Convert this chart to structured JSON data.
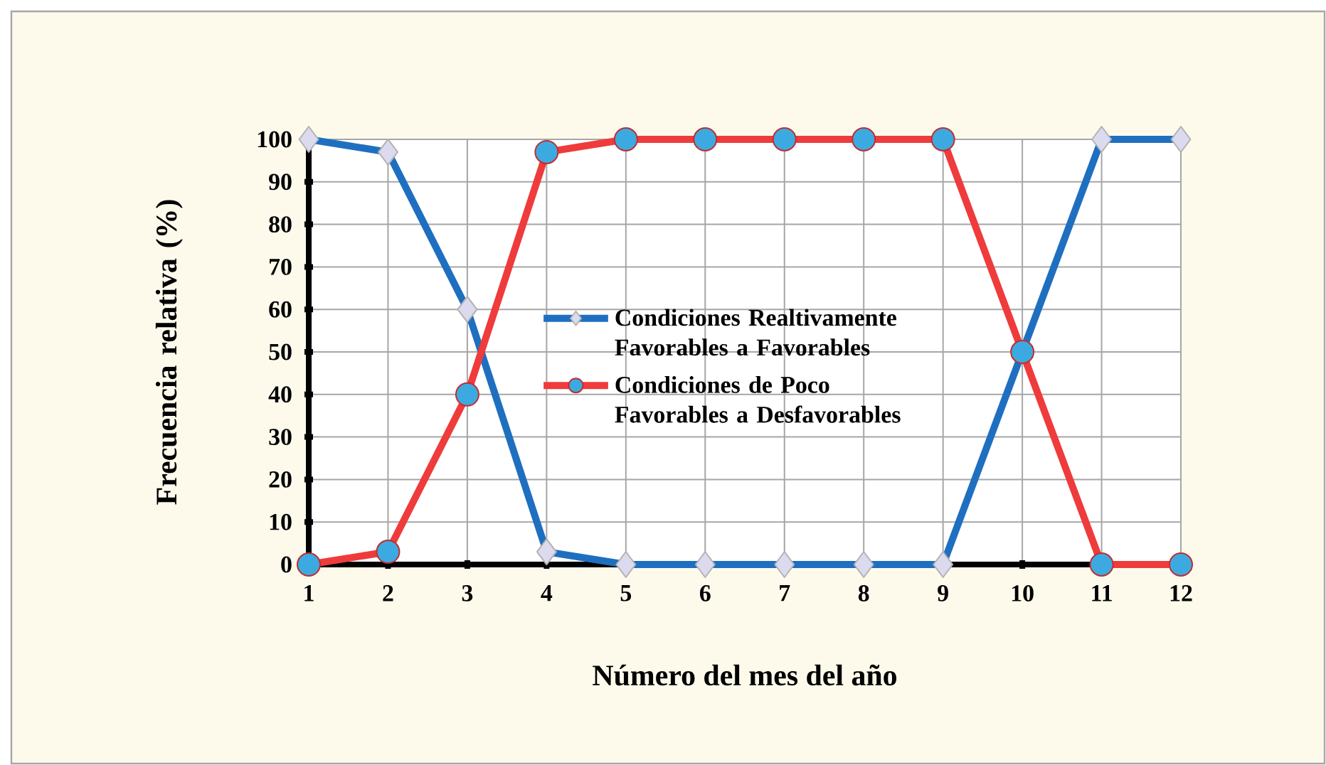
{
  "chart_data": {
    "type": "line",
    "xlabel": "Número del mes del año",
    "ylabel": "Frecuencia relativa (%)",
    "x": [
      1,
      2,
      3,
      4,
      5,
      6,
      7,
      8,
      9,
      10,
      11,
      12
    ],
    "series": [
      {
        "name": "Condiciones Realtivamente Favorables a Favorables",
        "color": "#1f6fc0",
        "marker": "diamond",
        "values": [
          100,
          97,
          60,
          3,
          0,
          0,
          0,
          0,
          0,
          50,
          100,
          100
        ]
      },
      {
        "name": "Condiciones de Poco Favorables a Desfavorables",
        "color": "#ef3b3b",
        "marker": "circle",
        "values": [
          0,
          3,
          40,
          97,
          100,
          100,
          100,
          100,
          100,
          50,
          0,
          0
        ]
      }
    ],
    "xlim": [
      1,
      12
    ],
    "xticks": [
      1,
      2,
      3,
      4,
      5,
      6,
      7,
      8,
      9,
      10,
      11,
      12
    ],
    "ylim": [
      0,
      100
    ],
    "yticks": [
      0,
      10,
      20,
      30,
      40,
      50,
      60,
      70,
      80,
      90,
      100
    ],
    "grid": true,
    "legend": "center",
    "line_style": "solid"
  }
}
